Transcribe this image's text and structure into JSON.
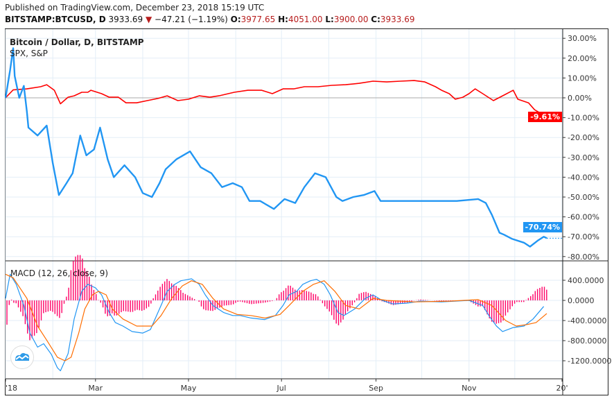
{
  "header": {
    "published": "Published on TradingView.com, December 23, 2018 15:19 UTC",
    "symbol": "BITSTAMP:BTCUSD, D",
    "last": "3933.69",
    "change": "−47.21 (−1.19%)",
    "o_label": "O:",
    "o": "3977.65",
    "h_label": "H:",
    "h": "4051.00",
    "l_label": "L:",
    "l": "3900.00",
    "c_label": "C:",
    "c": "3933.69",
    "down_icon": "triangle-down-icon"
  },
  "legend": {
    "main": "Bitcoin / Dollar, D, BITSTAMP",
    "compare": "SPX, S&P",
    "macd": "MACD (12, 26, close, 9)"
  },
  "colors": {
    "btc": "#2196f3",
    "spx": "#ff0000",
    "macd": "#2196f3",
    "signal": "#ff6d00",
    "hist": "#ff0066",
    "grid": "#e3eef7"
  },
  "last_tags": {
    "spx": "-9.61%",
    "btc": "-70.74%"
  },
  "chart_data": [
    {
      "type": "line",
      "scale": "percent",
      "y_ticks": [
        "30.00%",
        "20.00%",
        "10.00%",
        "0.00%",
        "-10.00%",
        "-20.00%",
        "-30.00%",
        "-40.00%",
        "-50.00%",
        "-60.00%",
        "-70.00%",
        "-80.00%"
      ],
      "x_ticks": [
        "'18",
        "Mar",
        "May",
        "Jul",
        "Sep",
        "Nov",
        "20'"
      ],
      "series": [
        {
          "name": "Bitcoin / Dollar, D, BITSTAMP",
          "points": [
            [
              "2018-01-01",
              0
            ],
            [
              "2018-01-04",
              14
            ],
            [
              "2018-01-06",
              25
            ],
            [
              "2018-01-07",
              11
            ],
            [
              "2018-01-10",
              0
            ],
            [
              "2018-01-13",
              6
            ],
            [
              "2018-01-15",
              -7
            ],
            [
              "2018-01-16",
              -15
            ],
            [
              "2018-01-22",
              -19
            ],
            [
              "2018-01-28",
              -14
            ],
            [
              "2018-02-01",
              -33
            ],
            [
              "2018-02-05",
              -49
            ],
            [
              "2018-02-10",
              -43
            ],
            [
              "2018-02-14",
              -38
            ],
            [
              "2018-02-19",
              -19
            ],
            [
              "2018-02-23",
              -29
            ],
            [
              "2018-02-28",
              -26
            ],
            [
              "2018-03-04",
              -15
            ],
            [
              "2018-03-09",
              -31
            ],
            [
              "2018-03-13",
              -40
            ],
            [
              "2018-03-20",
              -34
            ],
            [
              "2018-03-27",
              -40
            ],
            [
              "2018-04-01",
              -48
            ],
            [
              "2018-04-07",
              -50
            ],
            [
              "2018-04-12",
              -43
            ],
            [
              "2018-04-16",
              -36
            ],
            [
              "2018-04-23",
              -31
            ],
            [
              "2018-05-02",
              -27
            ],
            [
              "2018-05-09",
              -35
            ],
            [
              "2018-05-16",
              -38
            ],
            [
              "2018-05-23",
              -45
            ],
            [
              "2018-05-30",
              -43
            ],
            [
              "2018-06-05",
              -45
            ],
            [
              "2018-06-10",
              -52
            ],
            [
              "2018-06-17",
              -52
            ],
            [
              "2018-06-26",
              -56
            ],
            [
              "2018-07-03",
              -51
            ],
            [
              "2018-07-10",
              -53
            ],
            [
              "2018-07-16",
              -45
            ],
            [
              "2018-07-23",
              -38
            ],
            [
              "2018-07-30",
              -40
            ],
            [
              "2018-08-06",
              -50
            ],
            [
              "2018-08-10",
              -52
            ],
            [
              "2018-08-17",
              -50
            ],
            [
              "2018-08-24",
              -49
            ],
            [
              "2018-08-31",
              -47
            ],
            [
              "2018-09-04",
              -52
            ],
            [
              "2018-09-13",
              -52
            ],
            [
              "2018-09-27",
              -52
            ],
            [
              "2018-10-11",
              -52
            ],
            [
              "2018-10-24",
              -52
            ],
            [
              "2018-11-07",
              -51
            ],
            [
              "2018-11-12",
              -53
            ],
            [
              "2018-11-16",
              -59
            ],
            [
              "2018-11-21",
              -68
            ],
            [
              "2018-11-24",
              -69
            ],
            [
              "2018-11-29",
              -71
            ],
            [
              "2018-12-07",
              -73
            ],
            [
              "2018-12-11",
              -75
            ],
            [
              "2018-12-16",
              -72
            ],
            [
              "2018-12-20",
              -70
            ],
            [
              "2018-12-22",
              -70.74
            ]
          ]
        },
        {
          "name": "SPX, S&P",
          "points": [
            [
              "2018-01-01",
              0
            ],
            [
              "2018-01-06",
              4
            ],
            [
              "2018-01-15",
              4.5
            ],
            [
              "2018-01-24",
              5.6
            ],
            [
              "2018-01-28",
              6.6
            ],
            [
              "2018-02-02",
              3.8
            ],
            [
              "2018-02-06",
              -3
            ],
            [
              "2018-02-11",
              0.3
            ],
            [
              "2018-02-15",
              1
            ],
            [
              "2018-02-20",
              2.8
            ],
            [
              "2018-02-24",
              2.8
            ],
            [
              "2018-02-26",
              3.8
            ],
            [
              "2018-03-05",
              2.1
            ],
            [
              "2018-03-10",
              0.3
            ],
            [
              "2018-03-16",
              0.3
            ],
            [
              "2018-03-21",
              -2.5
            ],
            [
              "2018-03-28",
              -2.5
            ],
            [
              "2018-04-04",
              -1.4
            ],
            [
              "2018-04-11",
              -0.3
            ],
            [
              "2018-04-17",
              1
            ],
            [
              "2018-04-24",
              -1.4
            ],
            [
              "2018-05-01",
              -0.7
            ],
            [
              "2018-05-08",
              1
            ],
            [
              "2018-05-15",
              0.3
            ],
            [
              "2018-05-21",
              1
            ],
            [
              "2018-05-31",
              2.8
            ],
            [
              "2018-06-09",
              3.8
            ],
            [
              "2018-06-18",
              3.8
            ],
            [
              "2018-06-25",
              2.1
            ],
            [
              "2018-07-02",
              4.5
            ],
            [
              "2018-07-09",
              4.5
            ],
            [
              "2018-07-16",
              5.6
            ],
            [
              "2018-07-25",
              5.6
            ],
            [
              "2018-08-03",
              6.3
            ],
            [
              "2018-08-12",
              6.6
            ],
            [
              "2018-08-21",
              7.3
            ],
            [
              "2018-08-30",
              8.4
            ],
            [
              "2018-09-08",
              8
            ],
            [
              "2018-09-17",
              8.4
            ],
            [
              "2018-09-26",
              8.7
            ],
            [
              "2018-10-03",
              8
            ],
            [
              "2018-10-10",
              5.6
            ],
            [
              "2018-10-14",
              3.8
            ],
            [
              "2018-10-19",
              2.1
            ],
            [
              "2018-10-23",
              -0.7
            ],
            [
              "2018-10-28",
              0.3
            ],
            [
              "2018-11-01",
              2.1
            ],
            [
              "2018-11-05",
              4.5
            ],
            [
              "2018-11-10",
              2.1
            ],
            [
              "2018-11-17",
              -1.4
            ],
            [
              "2018-11-24",
              1.4
            ],
            [
              "2018-11-30",
              3.8
            ],
            [
              "2018-12-03",
              -0.7
            ],
            [
              "2018-12-10",
              -2.5
            ],
            [
              "2018-12-14",
              -6
            ],
            [
              "2018-12-22",
              -9.61
            ]
          ]
        }
      ]
    },
    {
      "type": "line",
      "title": "MACD (12, 26, close, 9)",
      "y_ticks": [
        "400.0000",
        "0.0000",
        "-400.0000",
        "-800.0000",
        "-1200.0000"
      ],
      "series": [
        {
          "name": "MACD",
          "points": [
            [
              "2018-01-01",
              40
            ],
            [
              "2018-01-04",
              520
            ],
            [
              "2018-01-08",
              320
            ],
            [
              "2018-01-13",
              -100
            ],
            [
              "2018-01-17",
              -650
            ],
            [
              "2018-01-22",
              -930
            ],
            [
              "2018-01-26",
              -860
            ],
            [
              "2018-01-31",
              -1070
            ],
            [
              "2018-02-04",
              -1340
            ],
            [
              "2018-02-06",
              -1400
            ],
            [
              "2018-02-11",
              -1060
            ],
            [
              "2018-02-15",
              -370
            ],
            [
              "2018-02-20",
              180
            ],
            [
              "2018-02-24",
              320
            ],
            [
              "2018-03-01",
              250
            ],
            [
              "2018-03-05",
              110
            ],
            [
              "2018-03-10",
              -240
            ],
            [
              "2018-03-14",
              -440
            ],
            [
              "2018-03-19",
              -510
            ],
            [
              "2018-03-25",
              -620
            ],
            [
              "2018-04-01",
              -650
            ],
            [
              "2018-04-06",
              -580
            ],
            [
              "2018-04-13",
              -100
            ],
            [
              "2018-04-17",
              180
            ],
            [
              "2018-04-22",
              320
            ],
            [
              "2018-04-26",
              390
            ],
            [
              "2018-05-03",
              430
            ],
            [
              "2018-05-08",
              320
            ],
            [
              "2018-05-12",
              110
            ],
            [
              "2018-05-17",
              -100
            ],
            [
              "2018-05-24",
              -240
            ],
            [
              "2018-05-30",
              -300
            ],
            [
              "2018-06-04",
              -300
            ],
            [
              "2018-06-11",
              -350
            ],
            [
              "2018-06-20",
              -380
            ],
            [
              "2018-06-27",
              -300
            ],
            [
              "2018-07-02",
              -100
            ],
            [
              "2018-07-06",
              110
            ],
            [
              "2018-07-11",
              180
            ],
            [
              "2018-07-15",
              320
            ],
            [
              "2018-07-20",
              390
            ],
            [
              "2018-07-24",
              420
            ],
            [
              "2018-07-29",
              320
            ],
            [
              "2018-08-02",
              110
            ],
            [
              "2018-08-07",
              -240
            ],
            [
              "2018-08-11",
              -300
            ],
            [
              "2018-08-18",
              -170
            ],
            [
              "2018-08-25",
              40
            ],
            [
              "2018-08-30",
              110
            ],
            [
              "2018-09-05",
              0
            ],
            [
              "2018-09-12",
              -70
            ],
            [
              "2018-09-21",
              -55
            ],
            [
              "2018-09-30",
              -15
            ],
            [
              "2018-10-14",
              -30
            ],
            [
              "2018-11-01",
              0
            ],
            [
              "2018-11-10",
              -100
            ],
            [
              "2018-11-14",
              -300
            ],
            [
              "2018-11-19",
              -510
            ],
            [
              "2018-11-23",
              -620
            ],
            [
              "2018-11-30",
              -540
            ],
            [
              "2018-12-07",
              -510
            ],
            [
              "2018-12-13",
              -370
            ],
            [
              "2018-12-20",
              -120
            ]
          ]
        },
        {
          "name": "Signal",
          "points": [
            [
              "2018-01-01",
              520
            ],
            [
              "2018-01-06",
              450
            ],
            [
              "2018-01-15",
              40
            ],
            [
              "2018-01-22",
              -510
            ],
            [
              "2018-01-28",
              -790
            ],
            [
              "2018-02-04",
              -1130
            ],
            [
              "2018-02-09",
              -1200
            ],
            [
              "2018-02-13",
              -1130
            ],
            [
              "2018-02-18",
              -650
            ],
            [
              "2018-02-22",
              -170
            ],
            [
              "2018-02-27",
              110
            ],
            [
              "2018-03-03",
              180
            ],
            [
              "2018-03-08",
              110
            ],
            [
              "2018-03-12",
              -170
            ],
            [
              "2018-03-19",
              -370
            ],
            [
              "2018-03-28",
              -510
            ],
            [
              "2018-04-07",
              -510
            ],
            [
              "2018-04-13",
              -300
            ],
            [
              "2018-04-20",
              40
            ],
            [
              "2018-04-27",
              290
            ],
            [
              "2018-05-03",
              390
            ],
            [
              "2018-05-10",
              320
            ],
            [
              "2018-05-17",
              40
            ],
            [
              "2018-05-24",
              -170
            ],
            [
              "2018-06-02",
              -280
            ],
            [
              "2018-06-11",
              -300
            ],
            [
              "2018-06-20",
              -350
            ],
            [
              "2018-06-30",
              -280
            ],
            [
              "2018-07-06",
              -100
            ],
            [
              "2018-07-15",
              180
            ],
            [
              "2018-07-22",
              320
            ],
            [
              "2018-07-29",
              390
            ],
            [
              "2018-08-05",
              180
            ],
            [
              "2018-08-12",
              -100
            ],
            [
              "2018-08-21",
              -170
            ],
            [
              "2018-08-30",
              40
            ],
            [
              "2018-09-08",
              0
            ],
            [
              "2018-09-26",
              -30
            ],
            [
              "2018-10-19",
              -15
            ],
            [
              "2018-11-07",
              15
            ],
            [
              "2018-11-16",
              -100
            ],
            [
              "2018-11-25",
              -400
            ],
            [
              "2018-12-02",
              -510
            ],
            [
              "2018-12-09",
              -480
            ],
            [
              "2018-12-15",
              -440
            ],
            [
              "2018-12-22",
              -260
            ]
          ]
        }
      ]
    }
  ]
}
